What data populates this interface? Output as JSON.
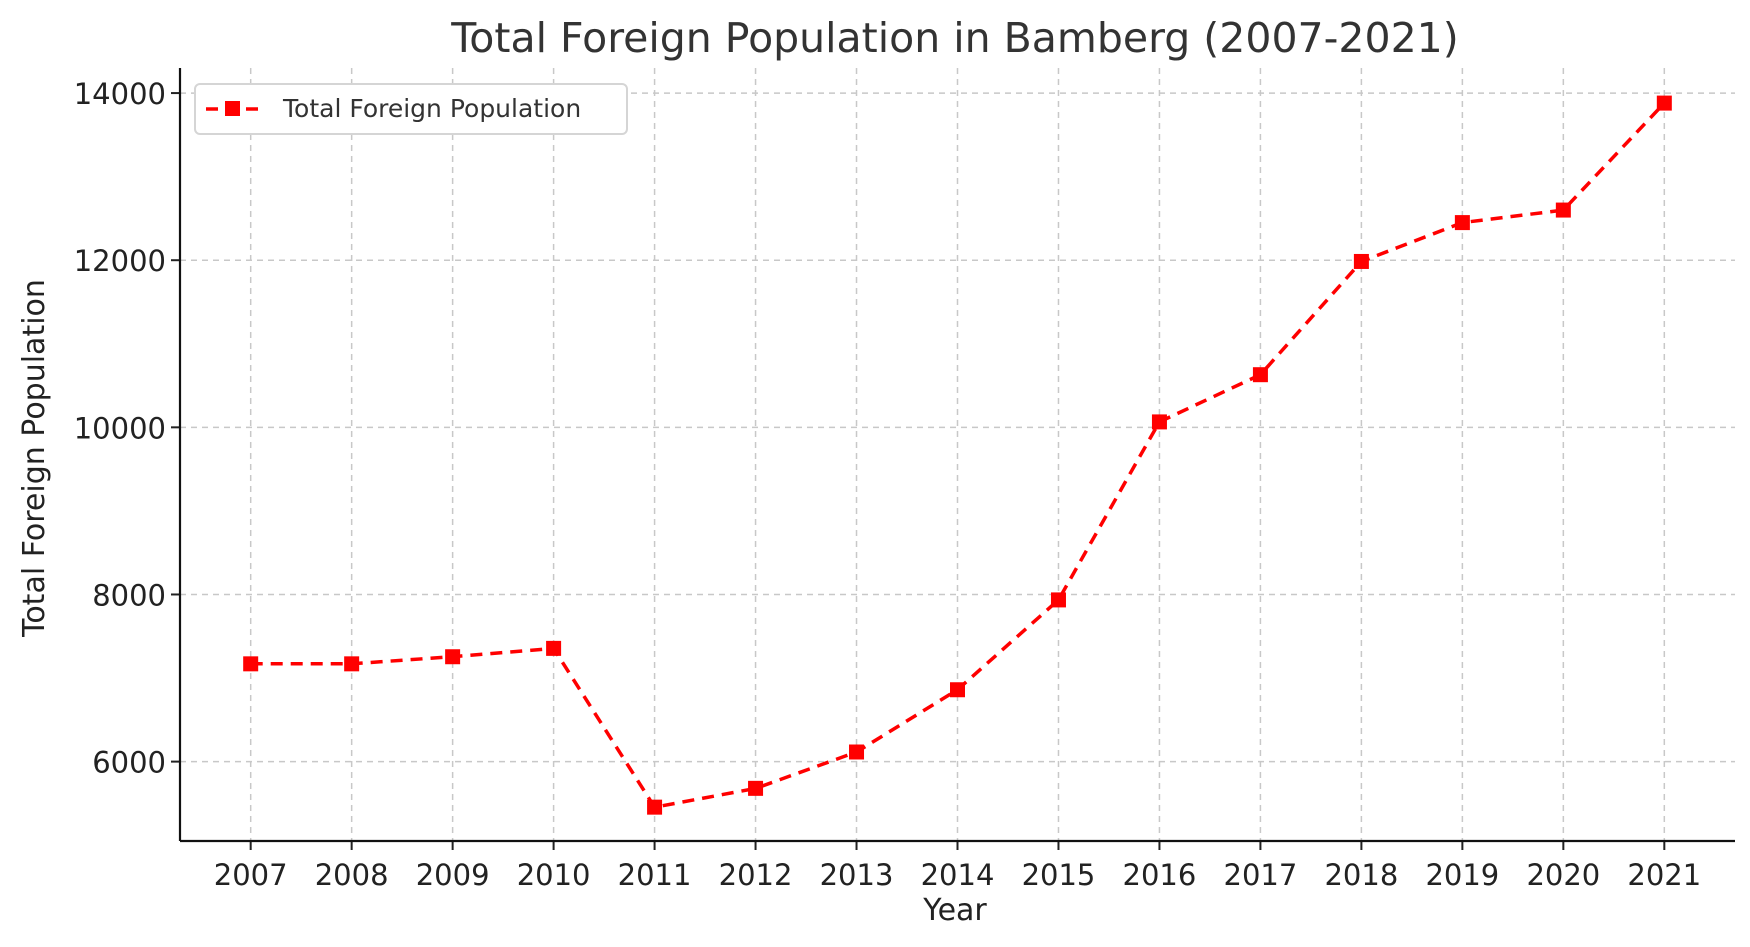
{
  "chart_data": {
    "type": "line",
    "title": "Total Foreign Population in Bamberg (2007-2021)",
    "xlabel": "Year",
    "ylabel": "Total Foreign Population",
    "x": [
      2007,
      2008,
      2009,
      2010,
      2011,
      2012,
      2013,
      2014,
      2015,
      2016,
      2017,
      2018,
      2019,
      2020,
      2021
    ],
    "x_tick_labels": [
      "2007",
      "2008",
      "2009",
      "2010",
      "2011",
      "2012",
      "2013",
      "2014",
      "2015",
      "2016",
      "2017",
      "2018",
      "2019",
      "2020",
      "2021"
    ],
    "y_ticks": [
      6000,
      8000,
      10000,
      12000,
      14000
    ],
    "y_tick_labels": [
      "6000",
      "8000",
      "10000",
      "12000",
      "14000"
    ],
    "xlim": [
      2006.3,
      2021.7
    ],
    "ylim": [
      5050,
      14300
    ],
    "grid": true,
    "legend_position": "top-left",
    "series": [
      {
        "name": "Total Foreign Population",
        "color": "#ff0000",
        "line_style": "dashed",
        "marker": "square",
        "values": [
          7170,
          7170,
          7255,
          7355,
          5455,
          5680,
          6115,
          6860,
          7935,
          10065,
          10630,
          11985,
          12450,
          12600,
          13880
        ]
      }
    ]
  }
}
